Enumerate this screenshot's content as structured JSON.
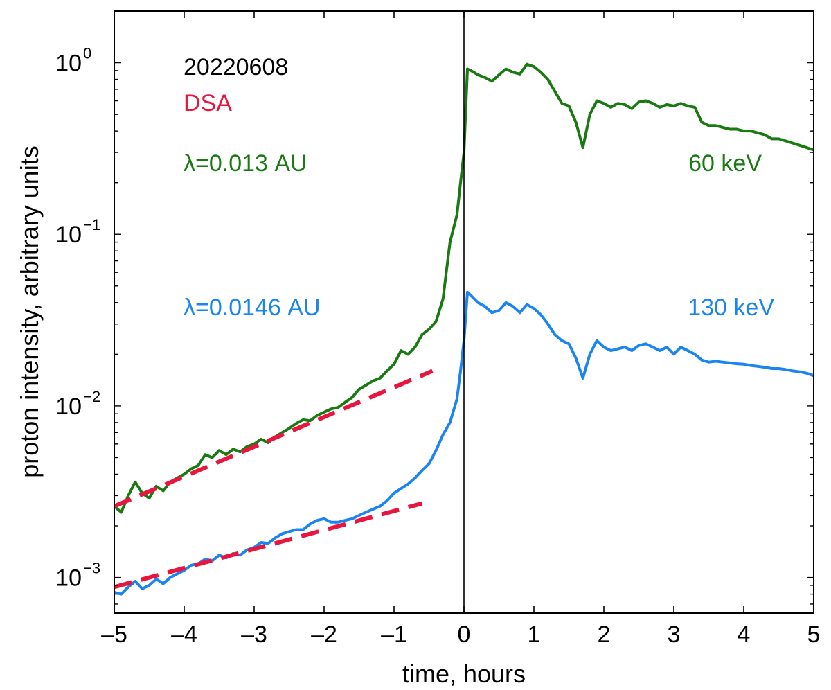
{
  "chart_data": {
    "type": "line",
    "xlabel": "time, hours",
    "ylabel": "proton intensity, arbitrary units",
    "xlim": [
      -5,
      5
    ],
    "ylim": [
      0.00062,
      2.0
    ],
    "yscale": "log",
    "grid": false,
    "vertical_line_at": 0,
    "x_ticks": [
      -5,
      -4,
      -3,
      -2,
      -1,
      0,
      1,
      2,
      3,
      4,
      5
    ],
    "x_tick_labels": [
      "–5",
      "–4",
      "–3",
      "–2",
      "–1",
      "0",
      "1",
      "2",
      "3",
      "4",
      "5"
    ],
    "y_ticks": [
      {
        "value": 0.001,
        "base": "10",
        "exp": "−3"
      },
      {
        "value": 0.01,
        "base": "10",
        "exp": "−2"
      },
      {
        "value": 0.1,
        "base": "10",
        "exp": "−1"
      },
      {
        "value": 1,
        "base": "10",
        "exp": "0"
      }
    ],
    "annotations": {
      "date": "20220608",
      "dsa": "DSA",
      "lambda_green": "λ=0.013 AU",
      "lambda_blue": "λ=0.0146 AU",
      "energy_green": "60 keV",
      "energy_blue": "130 keV"
    },
    "colors": {
      "green": "#1a7a12",
      "blue": "#1a85f0",
      "dsa": "#e8163f",
      "axis": "#000000"
    },
    "series": [
      {
        "name": "60 keV",
        "color": "#1a7a12",
        "x": [
          -5.0,
          -4.9,
          -4.8,
          -4.7,
          -4.6,
          -4.5,
          -4.4,
          -4.3,
          -4.2,
          -4.1,
          -4.0,
          -3.9,
          -3.8,
          -3.7,
          -3.6,
          -3.5,
          -3.4,
          -3.3,
          -3.2,
          -3.1,
          -3.0,
          -2.9,
          -2.8,
          -2.7,
          -2.6,
          -2.5,
          -2.4,
          -2.3,
          -2.2,
          -2.1,
          -2.0,
          -1.9,
          -1.8,
          -1.7,
          -1.6,
          -1.5,
          -1.4,
          -1.3,
          -1.2,
          -1.1,
          -1.0,
          -0.9,
          -0.8,
          -0.7,
          -0.6,
          -0.5,
          -0.4,
          -0.3,
          -0.2,
          -0.1,
          -0.05,
          0.0,
          0.05,
          0.1,
          0.2,
          0.3,
          0.4,
          0.5,
          0.6,
          0.7,
          0.8,
          0.9,
          1.0,
          1.1,
          1.2,
          1.3,
          1.4,
          1.5,
          1.6,
          1.7,
          1.8,
          1.9,
          2.0,
          2.1,
          2.2,
          2.3,
          2.4,
          2.5,
          2.6,
          2.7,
          2.8,
          2.9,
          3.0,
          3.1,
          3.2,
          3.3,
          3.4,
          3.5,
          3.6,
          3.7,
          3.8,
          3.9,
          4.0,
          4.1,
          4.2,
          4.3,
          4.4,
          4.5,
          4.6,
          4.7,
          4.8,
          4.9,
          5.0
        ],
        "values": [
          0.0026,
          0.0024,
          0.003,
          0.0036,
          0.0031,
          0.0029,
          0.0034,
          0.0032,
          0.0036,
          0.0038,
          0.004,
          0.0043,
          0.0045,
          0.0052,
          0.005,
          0.0055,
          0.0052,
          0.0056,
          0.0054,
          0.0058,
          0.006,
          0.0064,
          0.0061,
          0.0066,
          0.007,
          0.0074,
          0.0079,
          0.0083,
          0.0082,
          0.0088,
          0.0092,
          0.0096,
          0.0098,
          0.0105,
          0.0112,
          0.0125,
          0.0132,
          0.014,
          0.0145,
          0.016,
          0.0175,
          0.021,
          0.02,
          0.022,
          0.026,
          0.028,
          0.031,
          0.042,
          0.09,
          0.13,
          0.2,
          0.3,
          0.92,
          0.9,
          0.85,
          0.82,
          0.78,
          0.85,
          0.92,
          0.88,
          0.86,
          0.98,
          0.95,
          0.88,
          0.8,
          0.68,
          0.58,
          0.56,
          0.45,
          0.32,
          0.5,
          0.6,
          0.58,
          0.55,
          0.58,
          0.57,
          0.54,
          0.59,
          0.6,
          0.58,
          0.55,
          0.57,
          0.56,
          0.58,
          0.56,
          0.55,
          0.45,
          0.43,
          0.43,
          0.42,
          0.41,
          0.41,
          0.4,
          0.4,
          0.39,
          0.38,
          0.36,
          0.36,
          0.35,
          0.34,
          0.33,
          0.32,
          0.31
        ]
      },
      {
        "name": "130 keV",
        "color": "#1a85f0",
        "x": [
          -5.0,
          -4.9,
          -4.8,
          -4.7,
          -4.6,
          -4.5,
          -4.4,
          -4.3,
          -4.2,
          -4.1,
          -4.0,
          -3.9,
          -3.8,
          -3.7,
          -3.6,
          -3.5,
          -3.4,
          -3.3,
          -3.2,
          -3.1,
          -3.0,
          -2.9,
          -2.8,
          -2.7,
          -2.6,
          -2.5,
          -2.4,
          -2.3,
          -2.2,
          -2.1,
          -2.0,
          -1.9,
          -1.8,
          -1.7,
          -1.6,
          -1.5,
          -1.4,
          -1.3,
          -1.2,
          -1.1,
          -1.0,
          -0.9,
          -0.8,
          -0.7,
          -0.6,
          -0.5,
          -0.4,
          -0.3,
          -0.2,
          -0.1,
          -0.05,
          0.0,
          0.05,
          0.1,
          0.2,
          0.3,
          0.4,
          0.5,
          0.6,
          0.7,
          0.8,
          0.9,
          1.0,
          1.1,
          1.2,
          1.3,
          1.4,
          1.5,
          1.6,
          1.7,
          1.8,
          1.9,
          2.0,
          2.1,
          2.2,
          2.3,
          2.4,
          2.5,
          2.6,
          2.7,
          2.8,
          2.9,
          3.0,
          3.1,
          3.2,
          3.3,
          3.4,
          3.5,
          3.6,
          3.7,
          3.8,
          3.9,
          4.0,
          4.1,
          4.2,
          4.3,
          4.4,
          4.5,
          4.6,
          4.7,
          4.8,
          4.9,
          5.0
        ],
        "values": [
          0.00082,
          0.0008,
          0.00088,
          0.00095,
          0.00086,
          0.0009,
          0.00098,
          0.00092,
          0.001,
          0.00105,
          0.0011,
          0.00118,
          0.0012,
          0.00128,
          0.00125,
          0.00135,
          0.0013,
          0.00138,
          0.00135,
          0.00145,
          0.0015,
          0.0016,
          0.00158,
          0.0017,
          0.0018,
          0.00185,
          0.0019,
          0.0019,
          0.00205,
          0.00215,
          0.0022,
          0.0021,
          0.0021,
          0.00215,
          0.0022,
          0.0023,
          0.0024,
          0.0025,
          0.0026,
          0.0028,
          0.0031,
          0.0033,
          0.0035,
          0.0038,
          0.0042,
          0.0046,
          0.0055,
          0.0068,
          0.008,
          0.011,
          0.016,
          0.024,
          0.046,
          0.044,
          0.04,
          0.038,
          0.035,
          0.036,
          0.04,
          0.038,
          0.035,
          0.039,
          0.037,
          0.034,
          0.03,
          0.026,
          0.024,
          0.023,
          0.019,
          0.0145,
          0.02,
          0.024,
          0.022,
          0.021,
          0.0215,
          0.022,
          0.021,
          0.0225,
          0.023,
          0.022,
          0.021,
          0.022,
          0.02,
          0.022,
          0.021,
          0.02,
          0.0185,
          0.018,
          0.0182,
          0.018,
          0.0178,
          0.0176,
          0.0175,
          0.0172,
          0.017,
          0.0168,
          0.0165,
          0.0165,
          0.0163,
          0.016,
          0.0158,
          0.0155,
          0.015
        ]
      },
      {
        "name": "DSA fit (60 keV)",
        "color": "#e8163f",
        "style": "dashed",
        "x": [
          -5.0,
          -0.45
        ],
        "values": [
          0.0026,
          0.016
        ]
      },
      {
        "name": "DSA fit (130 keV)",
        "color": "#e8163f",
        "style": "dashed",
        "x": [
          -5.0,
          -0.6
        ],
        "values": [
          0.00088,
          0.0027
        ]
      }
    ]
  }
}
